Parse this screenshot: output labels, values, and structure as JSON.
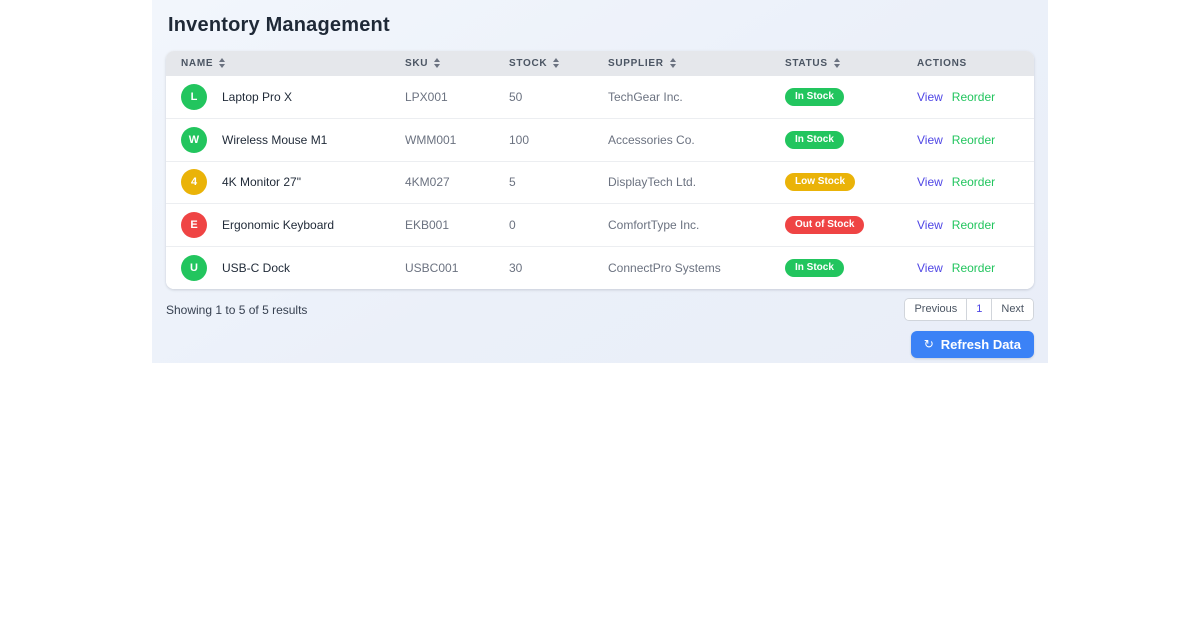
{
  "page": {
    "title": "Inventory Management"
  },
  "table": {
    "columns": [
      {
        "label": "NAME",
        "sortable": true
      },
      {
        "label": "SKU",
        "sortable": true
      },
      {
        "label": "STOCK",
        "sortable": true
      },
      {
        "label": "SUPPLIER",
        "sortable": true
      },
      {
        "label": "STATUS",
        "sortable": true
      },
      {
        "label": "ACTIONS",
        "sortable": false
      }
    ],
    "rows": [
      {
        "name": "Laptop Pro X",
        "initial": "L",
        "sku": "LPX001",
        "stock": "50",
        "supplier": "TechGear Inc.",
        "status": "In Stock",
        "status_type": "in_stock",
        "view_label": "View",
        "reorder_label": "Reorder"
      },
      {
        "name": "Wireless Mouse M1",
        "initial": "W",
        "sku": "WMM001",
        "stock": "100",
        "supplier": "Accessories Co.",
        "status": "In Stock",
        "status_type": "in_stock",
        "view_label": "View",
        "reorder_label": "Reorder"
      },
      {
        "name": "4K Monitor 27\"",
        "initial": "4",
        "sku": "4KM027",
        "stock": "5",
        "supplier": "DisplayTech Ltd.",
        "status": "Low Stock",
        "status_type": "low_stock",
        "view_label": "View",
        "reorder_label": "Reorder"
      },
      {
        "name": "Ergonomic Keyboard",
        "initial": "E",
        "sku": "EKB001",
        "stock": "0",
        "supplier": "ComfortType Inc.",
        "status": "Out of Stock",
        "status_type": "out_of_stock",
        "view_label": "View",
        "reorder_label": "Reorder"
      },
      {
        "name": "USB-C Dock",
        "initial": "U",
        "sku": "USBC001",
        "stock": "30",
        "supplier": "ConnectPro Systems",
        "status": "In Stock",
        "status_type": "in_stock",
        "view_label": "View",
        "reorder_label": "Reorder"
      }
    ]
  },
  "footer": {
    "summary": "Showing 1 to 5 of 5 results",
    "pagination": {
      "previous": "Previous",
      "current": "1",
      "next": "Next"
    },
    "refresh_button": {
      "label": "Refresh Data",
      "icon": "↻"
    }
  },
  "colors": {
    "in_stock": "#22c55e",
    "low_stock": "#eab308",
    "out_of_stock": "#ef4444",
    "view_link": "#4f46e5",
    "reorder_link": "#22c55e",
    "accent": "#3b82f6",
    "pagination_current": "#4f46e5"
  }
}
